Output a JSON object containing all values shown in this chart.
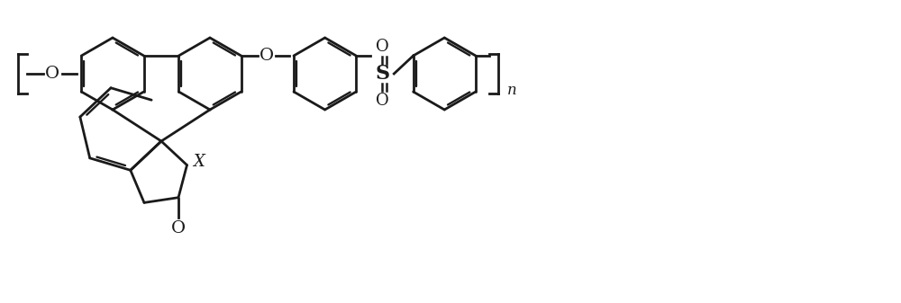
{
  "bg_color": "#ffffff",
  "line_color": "#1a1a1a",
  "line_width": 2.0,
  "font_size_label": 14,
  "fig_width": 10.0,
  "fig_height": 3.37,
  "xlim": [
    0,
    10
  ],
  "ylim": [
    0,
    3.37
  ]
}
